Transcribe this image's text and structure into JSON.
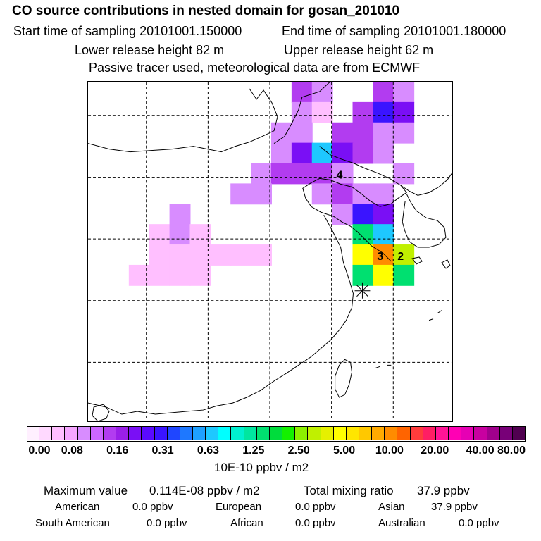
{
  "header": {
    "title": "CO  source contributions in nested domain for gosan_201010",
    "start_time": "Start time of sampling 20101001.150000",
    "end_time": "End time of sampling 20101001.180000",
    "lower_release": "Lower release height   82 m",
    "upper_release": "Upper release height   62 m",
    "note": "Passive tracer used, meteorological data are from ECMWF"
  },
  "chart_data": {
    "type": "heatmap",
    "title": "CO  source contributions in nested domain for gosan_201010",
    "xlabel": "",
    "ylabel": "",
    "grid": true,
    "grid_cols": 6,
    "grid_rows": 5,
    "plume_cells": [
      {
        "col": 10,
        "row": 0,
        "level": 3
      },
      {
        "col": 11,
        "row": 0,
        "level": 2
      },
      {
        "col": 14,
        "row": 0,
        "level": 3
      },
      {
        "col": 15,
        "row": 0,
        "level": 2
      },
      {
        "col": 10,
        "row": 1,
        "level": 2
      },
      {
        "col": 11,
        "row": 1,
        "level": 1
      },
      {
        "col": 13,
        "row": 1,
        "level": 3
      },
      {
        "col": 14,
        "row": 1,
        "level": 5
      },
      {
        "col": 15,
        "row": 1,
        "level": 4
      },
      {
        "col": 9,
        "row": 2,
        "level": 2
      },
      {
        "col": 10,
        "row": 2,
        "level": 2
      },
      {
        "col": 12,
        "row": 2,
        "level": 3
      },
      {
        "col": 13,
        "row": 2,
        "level": 3
      },
      {
        "col": 14,
        "row": 2,
        "level": 2
      },
      {
        "col": 15,
        "row": 2,
        "level": 2
      },
      {
        "col": 9,
        "row": 3,
        "level": 2
      },
      {
        "col": 10,
        "row": 3,
        "level": 4
      },
      {
        "col": 11,
        "row": 3,
        "level": 7
      },
      {
        "col": 12,
        "row": 3,
        "level": 4
      },
      {
        "col": 13,
        "row": 3,
        "level": 3
      },
      {
        "col": 14,
        "row": 3,
        "level": 2
      },
      {
        "col": 8,
        "row": 4,
        "level": 2
      },
      {
        "col": 9,
        "row": 4,
        "level": 3
      },
      {
        "col": 10,
        "row": 4,
        "level": 3
      },
      {
        "col": 11,
        "row": 4,
        "level": 3
      },
      {
        "col": 12,
        "row": 4,
        "level": 2
      },
      {
        "col": 15,
        "row": 4,
        "level": 2
      },
      {
        "col": 7,
        "row": 5,
        "level": 2
      },
      {
        "col": 8,
        "row": 5,
        "level": 2
      },
      {
        "col": 11,
        "row": 5,
        "level": 2
      },
      {
        "col": 12,
        "row": 5,
        "level": 3
      },
      {
        "col": 13,
        "row": 5,
        "level": 2
      },
      {
        "col": 14,
        "row": 5,
        "level": 2
      },
      {
        "col": 4,
        "row": 6,
        "level": 2
      },
      {
        "col": 12,
        "row": 6,
        "level": 2
      },
      {
        "col": 13,
        "row": 6,
        "level": 5
      },
      {
        "col": 14,
        "row": 6,
        "level": 4
      },
      {
        "col": 3,
        "row": 7,
        "level": 1
      },
      {
        "col": 4,
        "row": 7,
        "level": 2
      },
      {
        "col": 5,
        "row": 7,
        "level": 1
      },
      {
        "col": 13,
        "row": 7,
        "level": 9
      },
      {
        "col": 14,
        "row": 7,
        "level": 7
      },
      {
        "col": 3,
        "row": 8,
        "level": 1
      },
      {
        "col": 4,
        "row": 8,
        "level": 1
      },
      {
        "col": 5,
        "row": 8,
        "level": 1
      },
      {
        "col": 6,
        "row": 8,
        "level": 1
      },
      {
        "col": 7,
        "row": 8,
        "level": 1
      },
      {
        "col": 8,
        "row": 8,
        "level": 1
      },
      {
        "col": 13,
        "row": 8,
        "level": 12
      },
      {
        "col": 14,
        "row": 8,
        "level": 14
      },
      {
        "col": 15,
        "row": 8,
        "level": 11
      },
      {
        "col": 2,
        "row": 9,
        "level": 1
      },
      {
        "col": 3,
        "row": 9,
        "level": 1
      },
      {
        "col": 4,
        "row": 9,
        "level": 1
      },
      {
        "col": 5,
        "row": 9,
        "level": 1
      },
      {
        "col": 13,
        "row": 9,
        "level": 9
      },
      {
        "col": 14,
        "row": 9,
        "level": 12
      },
      {
        "col": 15,
        "row": 9,
        "level": 9
      }
    ],
    "station_labels": [
      {
        "label": "4",
        "col": 12,
        "row": 4
      },
      {
        "label": "3",
        "col": 14,
        "row": 8
      },
      {
        "label": "2",
        "col": 15,
        "row": 8
      }
    ],
    "receptor_marker": {
      "col": 13,
      "row": 10
    },
    "colorbar": {
      "unit": "10E-10 ppbv / m2",
      "colors": [
        "#fff0ff",
        "#ffd9ff",
        "#ffbfff",
        "#f5a6ff",
        "#d88cff",
        "#cc66ff",
        "#b23cf0",
        "#9a1fe8",
        "#7a0ff5",
        "#5a0aff",
        "#3a14ff",
        "#1f46ff",
        "#1e78ff",
        "#1ea0ff",
        "#1ec8ff",
        "#00ffff",
        "#00f0d0",
        "#00e6a0",
        "#00e070",
        "#00dc3c",
        "#14f000",
        "#8cf000",
        "#c0f000",
        "#e6f000",
        "#ffff00",
        "#ffe600",
        "#ffc800",
        "#ffaa00",
        "#ff8c00",
        "#ff6400",
        "#ff3c3c",
        "#ff1e64",
        "#ff1496",
        "#ff00b4",
        "#e600b4",
        "#c800a0",
        "#a0008c",
        "#780078",
        "#500050"
      ],
      "ticks": [
        "0.00",
        "0.08",
        "0.16",
        "0.31",
        "0.63",
        "1.25",
        "2.50",
        "5.00",
        "10.00",
        "20.00",
        "40.00",
        "80.00"
      ]
    },
    "max_label": "Maximum value",
    "max_value": "0.114E-08 ppbv / m2",
    "total_label": "Total mixing ratio",
    "total_value": "37.9 ppbv",
    "sources": [
      {
        "name": "American",
        "value": "0.0 ppbv"
      },
      {
        "name": "European",
        "value": "0.0 ppbv"
      },
      {
        "name": "Asian",
        "value": "37.9 ppbv"
      },
      {
        "name": "South American",
        "value": "0.0 ppbv"
      },
      {
        "name": "African",
        "value": "0.0 ppbv"
      },
      {
        "name": "Australian",
        "value": "0.0 ppbv"
      }
    ]
  }
}
